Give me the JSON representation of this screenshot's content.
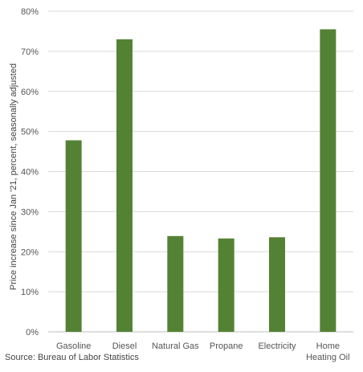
{
  "chart_data": {
    "type": "bar",
    "categories": [
      [
        "Gasoline"
      ],
      [
        "Diesel"
      ],
      [
        "Natural Gas"
      ],
      [
        "Propane"
      ],
      [
        "Electricity"
      ],
      [
        "Home",
        "Heating Oil"
      ]
    ],
    "values": [
      47.8,
      73.0,
      23.9,
      23.3,
      23.6,
      75.5
    ],
    "ylabel": "Price increase since Jan '21, percent, seasonally adjusted",
    "ylim": [
      0,
      80
    ],
    "yticks": [
      0,
      10,
      20,
      30,
      40,
      50,
      60,
      70,
      80
    ],
    "ytick_suffix": "%",
    "grid": true,
    "bar_color": "#548235",
    "grid_color": "#d9d9d9"
  },
  "source": "Source: Bureau of Labor Statistics"
}
